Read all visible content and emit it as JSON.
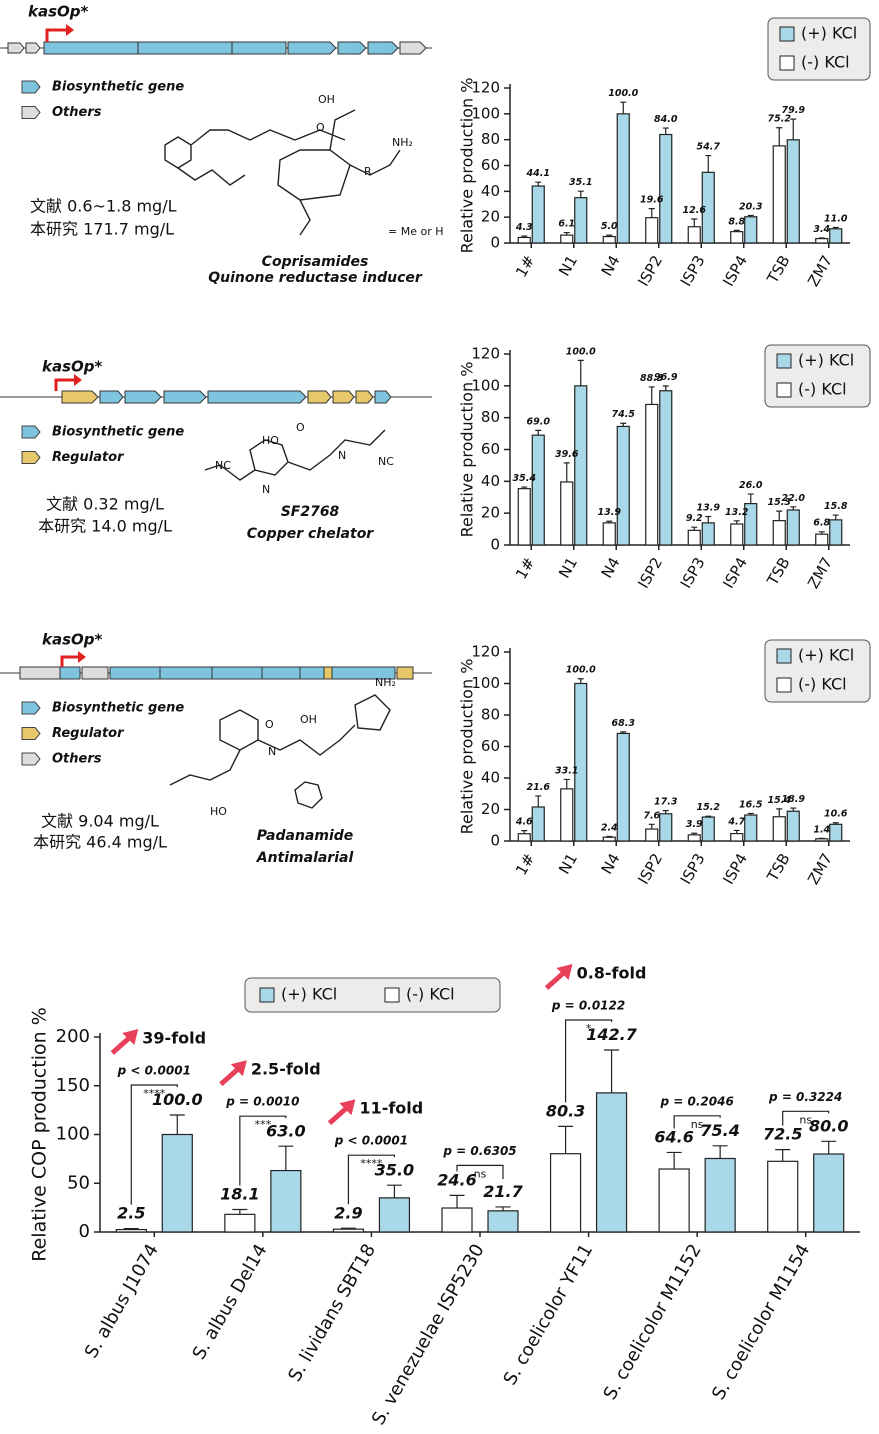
{
  "panels": [
    {
      "promoter": "kasOp*",
      "legend": [
        "Biosynthetic gene",
        "Others"
      ],
      "yields": [
        "文献 0.6~1.8 mg/L",
        "本研究 171.7 mg/L"
      ],
      "compound": [
        "Coprisamides",
        "Quinone reductase inducer"
      ],
      "structure_labels": [
        "OH",
        "O",
        "NH₂",
        "R",
        "= Me or H"
      ]
    },
    {
      "promoter": "kasOp*",
      "legend": [
        "Biosynthetic gene",
        "Regulator"
      ],
      "yields": [
        "文献 0.32 mg/L",
        "本研究 14.0 mg/L"
      ],
      "compound": [
        "SF2768",
        "Copper chelator"
      ],
      "structure_labels": [
        "HO",
        "O",
        "NC",
        "NC",
        "N",
        "N"
      ]
    },
    {
      "promoter": "kasOp*",
      "legend": [
        "Biosynthetic gene",
        "Regulator",
        "Others"
      ],
      "yields": [
        "文献 9.04 mg/L",
        "本研究 46.4 mg/L"
      ],
      "compound": [
        "Padanamide",
        "Antimalarial"
      ],
      "structure_labels": [
        "NH₂",
        "O",
        "HO",
        "OH",
        "N"
      ]
    }
  ],
  "chart_data": [
    {
      "type": "bar",
      "y_label": "Relative production %",
      "categories": [
        "1#",
        "N1",
        "N4",
        "ISP2",
        "ISP3",
        "ISP4",
        "TSB",
        "ZM7"
      ],
      "ylim": [
        0,
        120
      ],
      "yticks": [
        0,
        20,
        40,
        60,
        80,
        100,
        120
      ],
      "series": [
        {
          "name": "(+) KCl",
          "color": "#a9d9e8",
          "values": [
            44.1,
            35.1,
            100.0,
            84.0,
            54.7,
            20.3,
            79.9,
            11.0
          ],
          "value_labels": [
            "44.1",
            "35.1",
            "100.0",
            "84.0",
            "54.7",
            "20.3",
            "79.9",
            "11.0"
          ],
          "errors": [
            3,
            5,
            9,
            5,
            13,
            1,
            16,
            1
          ]
        },
        {
          "name": "(-) KCl",
          "color": "#ffffff",
          "values": [
            4.3,
            6.1,
            5.0,
            19.6,
            12.6,
            8.8,
            75.2,
            3.4
          ],
          "value_labels": [
            "4.3",
            "6.1",
            "5.0",
            "19.6",
            "12.6",
            "8.8",
            "75.2",
            "3.4"
          ],
          "errors": [
            1,
            2,
            1,
            7,
            6,
            1,
            14,
            0.5
          ]
        }
      ]
    },
    {
      "type": "bar",
      "y_label": "Relative production %",
      "categories": [
        "1#",
        "N1",
        "N4",
        "ISP2",
        "ISP3",
        "ISP4",
        "TSB",
        "ZM7"
      ],
      "ylim": [
        0,
        120
      ],
      "yticks": [
        0,
        20,
        40,
        60,
        80,
        100,
        120
      ],
      "series": [
        {
          "name": "(+) KCl",
          "color": "#a9d9e8",
          "values": [
            69.0,
            100.0,
            74.5,
            96.9,
            13.9,
            26.0,
            22.0,
            15.8
          ],
          "value_labels": [
            "69.0",
            "100.0",
            "74.5",
            "96.9",
            "13.9",
            "26.0",
            "22.0",
            "15.8"
          ],
          "errors": [
            3,
            16,
            2,
            3,
            4,
            6,
            2,
            3
          ]
        },
        {
          "name": "(-) KCl",
          "color": "#ffffff",
          "values": [
            35.4,
            39.6,
            13.9,
            88.3,
            9.2,
            13.2,
            15.3,
            6.8
          ],
          "value_labels": [
            "35.4",
            "39.6",
            "13.9",
            "88.3",
            "9.2",
            "13.2",
            "15.3",
            "6.8"
          ],
          "errors": [
            1,
            12,
            1,
            11,
            2,
            2,
            6,
            1.5
          ]
        }
      ]
    },
    {
      "type": "bar",
      "y_label": "Relative production %",
      "categories": [
        "1#",
        "N1",
        "N4",
        "ISP2",
        "ISP3",
        "ISP4",
        "TSB",
        "ZM7"
      ],
      "ylim": [
        0,
        120
      ],
      "yticks": [
        0,
        20,
        40,
        60,
        80,
        100,
        120
      ],
      "series": [
        {
          "name": "(+) KCl",
          "color": "#a9d9e8",
          "values": [
            21.6,
            100.0,
            68.3,
            17.3,
            15.2,
            16.5,
            18.9,
            10.6
          ],
          "value_labels": [
            "21.6",
            "100.0",
            "68.3",
            "17.3",
            "15.2",
            "16.5",
            "18.9",
            "10.6"
          ],
          "errors": [
            7,
            3,
            1,
            2,
            0.5,
            1,
            2,
            1
          ]
        },
        {
          "name": "(-) KCl",
          "color": "#ffffff",
          "values": [
            4.6,
            33.1,
            2.4,
            7.6,
            3.9,
            4.7,
            15.4,
            1.4
          ],
          "value_labels": [
            "4.6",
            "33.1",
            "2.4",
            "7.6",
            "3.9",
            "4.7",
            "15.4",
            "1.4"
          ],
          "errors": [
            2,
            6,
            0.5,
            3,
            1,
            2,
            5,
            0.3
          ]
        }
      ]
    },
    {
      "type": "bar",
      "y_label": "Relative COP production %",
      "categories": [
        "S. albus J1074",
        "S. albus Del14",
        "S. lividans SBT18",
        "S. venezuelae ISP5230",
        "S. coelicolor YF11",
        "S. coelicolor M1152",
        "S. coelicolor M1154"
      ],
      "ylim": [
        0,
        200
      ],
      "yticks": [
        0,
        50,
        100,
        150,
        200
      ],
      "series": [
        {
          "name": "(+) KCl",
          "color": "#a9d9e8",
          "values": [
            100.0,
            63.0,
            35.0,
            21.7,
            142.7,
            75.4,
            80.0
          ],
          "value_labels": [
            "100.0",
            "63.0",
            "35.0",
            "21.7",
            "142.7",
            "75.4",
            "80.0"
          ],
          "errors": [
            20,
            25,
            13,
            4,
            44,
            13,
            13
          ]
        },
        {
          "name": "(-) KCl",
          "color": "#ffffff",
          "values": [
            2.5,
            18.1,
            2.9,
            24.6,
            80.3,
            64.6,
            72.5
          ],
          "value_labels": [
            "2.5",
            "18.1",
            "2.9",
            "24.6",
            "80.3",
            "64.6",
            "72.5"
          ],
          "errors": [
            1,
            5,
            1,
            13,
            28,
            17,
            12
          ]
        }
      ],
      "fold_changes": [
        "39-fold",
        "2.5-fold",
        "11-fold",
        null,
        "0.8-fold",
        null,
        null
      ],
      "p_values": [
        "p < 0.0001",
        "p = 0.0010",
        "p < 0.0001",
        "p = 0.6305",
        "p = 0.0122",
        "p = 0.2046",
        "p = 0.3224"
      ],
      "significance": [
        "****",
        "***",
        "****",
        "ns",
        "*",
        "ns",
        "ns"
      ]
    }
  ]
}
